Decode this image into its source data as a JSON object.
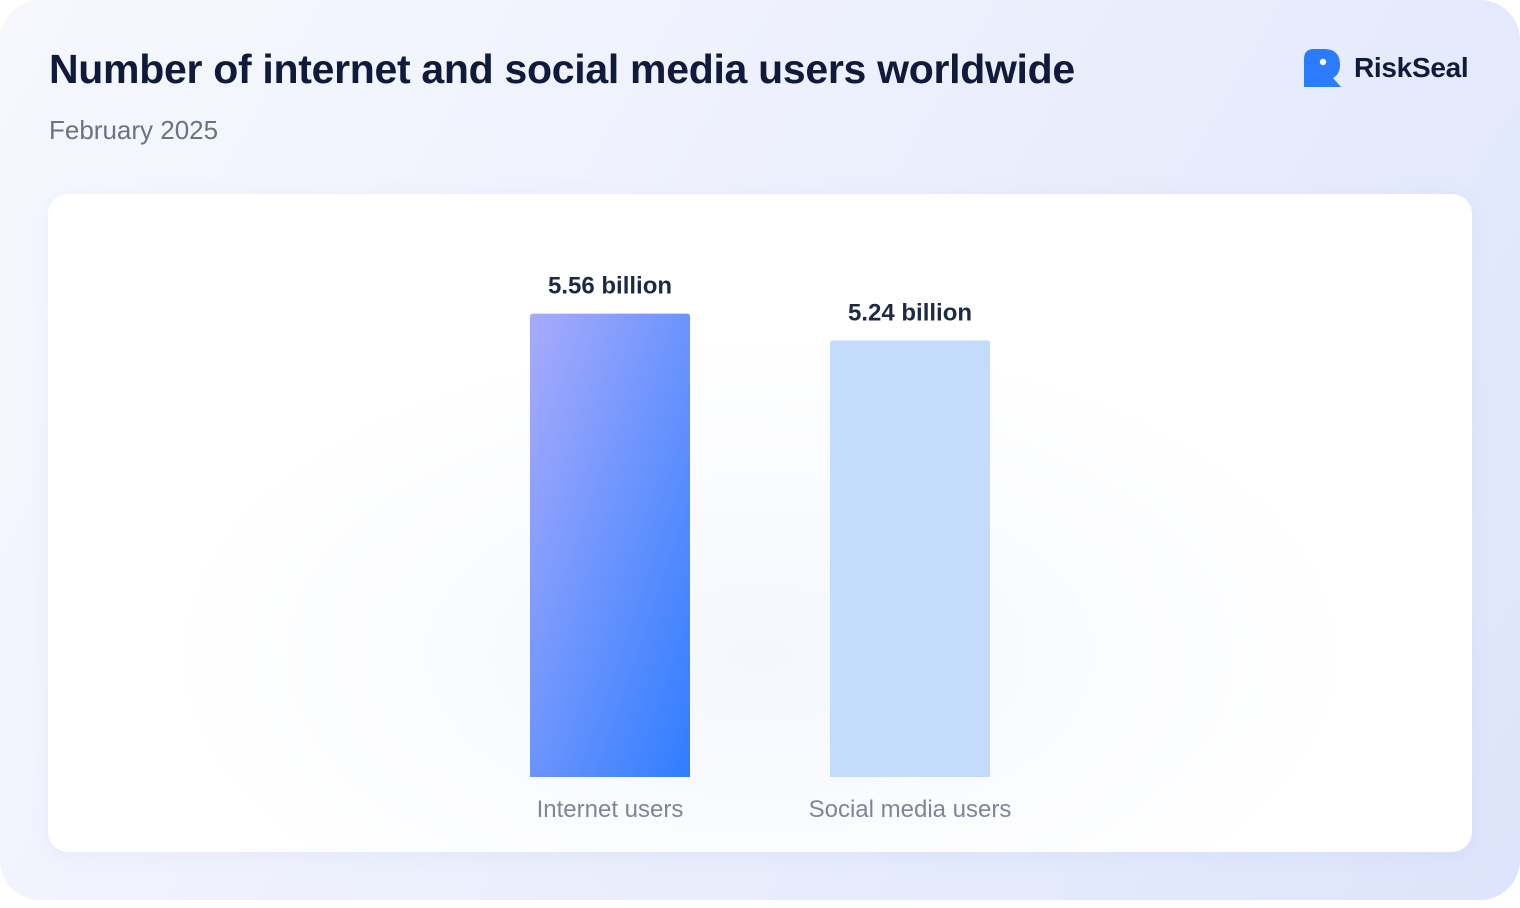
{
  "header": {
    "title": "Number of internet and social media users worldwide",
    "subtitle": "February 2025"
  },
  "brand": {
    "name": "RiskSeal",
    "icon": "riskseal-logo-icon",
    "color": "#2b7bff"
  },
  "chart_data": {
    "type": "bar",
    "categories": [
      "Internet users",
      "Social media users"
    ],
    "values": [
      5.56,
      5.24
    ],
    "value_labels": [
      "5.56 billion",
      "5.24 billion"
    ],
    "unit": "billion",
    "ylim": [
      0,
      6.6
    ],
    "grid": false,
    "colors": [
      {
        "from": "#a8abfb",
        "to": "#2f7dff"
      },
      {
        "from": "#c4dcfb",
        "to": "#c4dcfb"
      }
    ]
  }
}
